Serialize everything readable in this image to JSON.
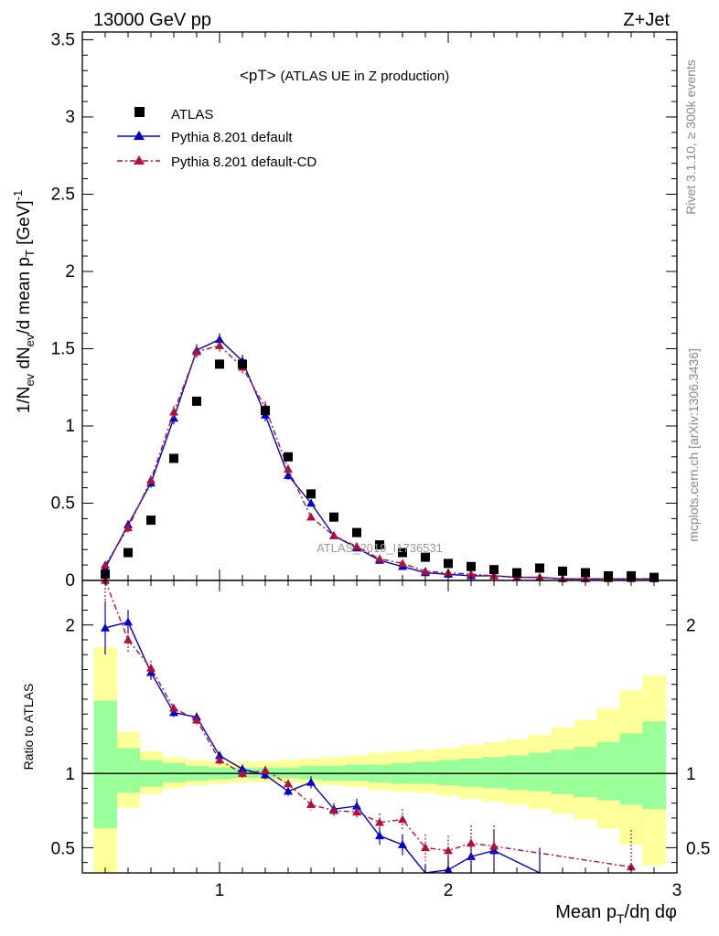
{
  "header": {
    "left": "13000 GeV pp",
    "right": "Z+Jet"
  },
  "title_main": "<pT>",
  "title_sub": "(ATLAS UE in Z production)",
  "watermark": "ATLAS_2019_I1736531",
  "side_labels": {
    "rivet": "Rivet 3.1.10, ≥ 300k events",
    "mcplots": "mcplots.cern.ch [arXiv:1306.3436]"
  },
  "axes": {
    "x_label": "Mean p_T/dη dφ",
    "y_label_main": "1/N_ev dN_ev/d mean p_T [GeV]^-1",
    "y_label_ratio": "Ratio to ATLAS"
  },
  "colors": {
    "data": "#000000",
    "default": "#0000cc",
    "cd": "#b0103a",
    "band_inner": "#99ff99",
    "band_outer": "#ffff99"
  },
  "chart_data": {
    "type": "scatter",
    "xlim": [
      0.4,
      3.0
    ],
    "x_ticks": [
      "1",
      "2",
      "3"
    ],
    "main": {
      "ylim": [
        0,
        3.55
      ],
      "y_ticks": [
        "0",
        "0.5",
        "1",
        "1.5",
        "2",
        "2.5",
        "3",
        "3.5"
      ],
      "legend_position": "top-left",
      "series": [
        {
          "name": "ATLAS",
          "style": "square",
          "x": [
            0.5,
            0.6,
            0.7,
            0.8,
            0.9,
            1.0,
            1.1,
            1.2,
            1.3,
            1.4,
            1.5,
            1.6,
            1.7,
            1.8,
            1.9,
            2.0,
            2.1,
            2.2,
            2.3,
            2.4,
            2.5,
            2.6,
            2.7,
            2.8,
            2.9
          ],
          "y": [
            0.04,
            0.18,
            0.39,
            0.79,
            1.16,
            1.4,
            1.4,
            1.1,
            0.8,
            0.56,
            0.41,
            0.31,
            0.23,
            0.18,
            0.15,
            0.11,
            0.09,
            0.07,
            0.05,
            0.08,
            0.06,
            0.05,
            0.03,
            0.03,
            0.02
          ]
        },
        {
          "name": "Pythia 8.201 default",
          "style": "solid",
          "x": [
            0.5,
            0.6,
            0.7,
            0.8,
            0.9,
            1.0,
            1.1,
            1.2,
            1.3,
            1.4,
            1.5,
            1.6,
            1.7,
            1.8,
            1.9,
            2.0,
            2.1,
            2.2,
            2.3,
            2.4,
            2.5,
            2.6,
            2.7,
            2.8,
            2.9
          ],
          "y": [
            0.08,
            0.36,
            0.63,
            1.05,
            1.49,
            1.56,
            1.42,
            1.07,
            0.68,
            0.5,
            0.29,
            0.21,
            0.13,
            0.09,
            0.05,
            0.04,
            0.03,
            0.03,
            0.02,
            0.02,
            0.01,
            0.01,
            0.01,
            0.01,
            0.01
          ],
          "err": [
            0.02,
            0.03,
            0.03,
            0.04,
            0.04,
            0.04,
            0.04,
            0.04,
            0.03,
            0.02,
            0.02,
            0.02,
            0.01,
            0.01,
            0.01,
            0.01,
            0.01,
            0.01,
            0.01,
            0.01,
            0.01,
            0.01,
            0.01,
            0.01,
            0.01
          ]
        },
        {
          "name": "Pythia 8.201 default-CD",
          "style": "dashdot",
          "x": [
            0.5,
            0.6,
            0.7,
            0.8,
            0.9,
            1.0,
            1.1,
            1.2,
            1.3,
            1.4,
            1.5,
            1.6,
            1.7,
            1.8,
            1.9,
            2.0,
            2.1,
            2.2,
            2.3,
            2.4,
            2.5,
            2.6,
            2.7,
            2.8,
            2.9
          ],
          "y": [
            0.1,
            0.34,
            0.65,
            1.09,
            1.48,
            1.52,
            1.38,
            1.12,
            0.72,
            0.41,
            0.29,
            0.22,
            0.14,
            0.11,
            0.06,
            0.05,
            0.04,
            0.03,
            0.02,
            0.02,
            0.01,
            0.01,
            0.01,
            0.01,
            0.01
          ],
          "err": [
            0.02,
            0.03,
            0.03,
            0.04,
            0.04,
            0.04,
            0.04,
            0.04,
            0.03,
            0.02,
            0.02,
            0.02,
            0.01,
            0.01,
            0.01,
            0.01,
            0.01,
            0.01,
            0.01,
            0.01,
            0.01,
            0.01,
            0.01,
            0.01,
            0.01
          ]
        }
      ]
    },
    "ratio": {
      "ylim": [
        0.33,
        2.3
      ],
      "y_ticks": [
        "0.5",
        "1",
        "2"
      ],
      "reference_line": 1,
      "band_edges": [
        0.45,
        0.55,
        0.65,
        0.75,
        0.85,
        0.95,
        1.05,
        1.15,
        1.25,
        1.35,
        1.45,
        1.55,
        1.65,
        1.75,
        1.85,
        1.95,
        2.05,
        2.15,
        2.25,
        2.35,
        2.45,
        2.55,
        2.65,
        2.75,
        2.85,
        2.95
      ],
      "band_inner": [
        [
          0.63,
          1.49
        ],
        [
          0.87,
          1.17
        ],
        [
          0.91,
          1.09
        ],
        [
          0.94,
          1.07
        ],
        [
          0.95,
          1.05
        ],
        [
          0.96,
          1.04
        ],
        [
          0.97,
          1.04
        ],
        [
          0.97,
          1.04
        ],
        [
          0.97,
          1.04
        ],
        [
          0.96,
          1.05
        ],
        [
          0.95,
          1.05
        ],
        [
          0.95,
          1.06
        ],
        [
          0.94,
          1.06
        ],
        [
          0.93,
          1.07
        ],
        [
          0.93,
          1.08
        ],
        [
          0.92,
          1.09
        ],
        [
          0.91,
          1.1
        ],
        [
          0.9,
          1.11
        ],
        [
          0.89,
          1.12
        ],
        [
          0.88,
          1.14
        ],
        [
          0.86,
          1.16
        ],
        [
          0.84,
          1.18
        ],
        [
          0.82,
          1.21
        ],
        [
          0.79,
          1.27
        ],
        [
          0.76,
          1.35
        ]
      ],
      "band_outer": [
        [
          0.33,
          1.85
        ],
        [
          0.77,
          1.28
        ],
        [
          0.86,
          1.15
        ],
        [
          0.9,
          1.11
        ],
        [
          0.92,
          1.09
        ],
        [
          0.93,
          1.08
        ],
        [
          0.94,
          1.08
        ],
        [
          0.94,
          1.08
        ],
        [
          0.94,
          1.09
        ],
        [
          0.93,
          1.1
        ],
        [
          0.92,
          1.11
        ],
        [
          0.91,
          1.12
        ],
        [
          0.89,
          1.14
        ],
        [
          0.88,
          1.15
        ],
        [
          0.87,
          1.16
        ],
        [
          0.85,
          1.17
        ],
        [
          0.83,
          1.19
        ],
        [
          0.81,
          1.21
        ],
        [
          0.79,
          1.23
        ],
        [
          0.76,
          1.26
        ],
        [
          0.73,
          1.31
        ],
        [
          0.69,
          1.36
        ],
        [
          0.63,
          1.44
        ],
        [
          0.52,
          1.56
        ],
        [
          0.38,
          1.66
        ]
      ],
      "series": [
        {
          "name": "Pythia 8.201 default",
          "x": [
            0.5,
            0.6,
            0.7,
            0.8,
            0.9,
            1.0,
            1.1,
            1.2,
            1.3,
            1.4,
            1.5,
            1.6,
            1.7,
            1.8,
            1.9,
            2.0,
            2.1,
            2.2,
            2.4
          ],
          "y": [
            1.98,
            2.02,
            1.68,
            1.41,
            1.38,
            1.12,
            1.03,
            0.99,
            0.88,
            0.94,
            0.76,
            0.78,
            0.58,
            0.52,
            0.3,
            0.35,
            0.44,
            0.48,
            0.2
          ],
          "err": [
            0.18,
            0.08,
            0.05,
            0.03,
            0.03,
            0.03,
            0.03,
            0.03,
            0.03,
            0.04,
            0.04,
            0.05,
            0.06,
            0.07,
            0.09,
            0.1,
            0.12,
            0.14,
            0.3
          ]
        },
        {
          "name": "Pythia 8.201 default-CD",
          "x": [
            0.5,
            0.6,
            0.7,
            0.8,
            0.9,
            1.0,
            1.1,
            1.2,
            1.3,
            1.4,
            1.5,
            1.6,
            1.7,
            1.8,
            1.9,
            2.0,
            2.1,
            2.2,
            2.8
          ],
          "y": [
            2.3,
            1.9,
            1.71,
            1.44,
            1.36,
            1.09,
            1.0,
            1.02,
            0.93,
            0.79,
            0.75,
            0.74,
            0.67,
            0.69,
            0.5,
            0.48,
            0.53,
            0.51,
            0.37
          ],
          "err": [
            0.18,
            0.08,
            0.05,
            0.03,
            0.03,
            0.03,
            0.03,
            0.03,
            0.03,
            0.04,
            0.04,
            0.05,
            0.06,
            0.07,
            0.09,
            0.1,
            0.12,
            0.14,
            0.25
          ]
        }
      ]
    }
  }
}
